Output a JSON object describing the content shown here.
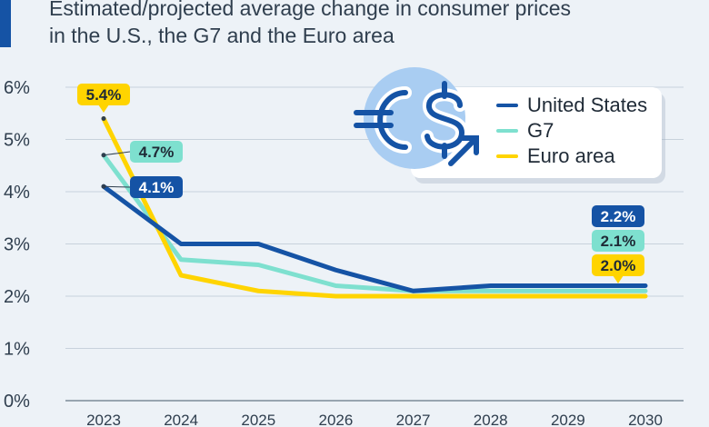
{
  "header": {
    "title_line1": "Estimated/projected average change in consumer prices",
    "title_line2": "in the U.S., the G7 and the Euro area"
  },
  "colors": {
    "accent": "#1553a5",
    "united_states": "#1553a5",
    "g7": "#7ee0cf",
    "euro_area": "#ffd400",
    "grid": "#c8d2dc",
    "text": "#2f3e4e"
  },
  "legend": {
    "icon": "euro-dollar-arrow-icon",
    "items": [
      {
        "label": "United States",
        "color": "#1553a5"
      },
      {
        "label": "G7",
        "color": "#7ee0cf"
      },
      {
        "label": "Euro area",
        "color": "#ffd400"
      }
    ]
  },
  "chart_data": {
    "type": "line",
    "title": "Estimated/projected average change in consumer prices in the U.S., the G7 and the Euro area",
    "x": [
      "2023",
      "2024",
      "2025",
      "2026",
      "2027",
      "2028",
      "2029",
      "2030"
    ],
    "ylim": [
      0,
      6
    ],
    "yticks": [
      "0%",
      "1%",
      "2%",
      "3%",
      "4%",
      "5%",
      "6%"
    ],
    "grid": true,
    "legend_position": "top-right",
    "series": [
      {
        "name": "G7",
        "color": "#7ee0cf",
        "values": [
          4.7,
          2.7,
          2.6,
          2.2,
          2.1,
          2.1,
          2.1,
          2.1
        ]
      },
      {
        "name": "Euro area",
        "color": "#ffd400",
        "values": [
          5.4,
          2.4,
          2.1,
          2.0,
          2.0,
          2.0,
          2.0,
          2.0
        ]
      },
      {
        "name": "United States",
        "color": "#1553a5",
        "values": [
          4.1,
          3.0,
          3.0,
          2.5,
          2.1,
          2.2,
          2.2,
          2.2
        ]
      }
    ],
    "annotations": [
      {
        "series": "Euro area",
        "x": "2023",
        "text": "5.4%"
      },
      {
        "series": "G7",
        "x": "2023",
        "text": "4.7%"
      },
      {
        "series": "United States",
        "x": "2023",
        "text": "4.1%"
      },
      {
        "series": "United States",
        "x": "2030",
        "text": "2.2%"
      },
      {
        "series": "G7",
        "x": "2030",
        "text": "2.1%"
      },
      {
        "series": "Euro area",
        "x": "2030",
        "text": "2.0%"
      }
    ]
  }
}
